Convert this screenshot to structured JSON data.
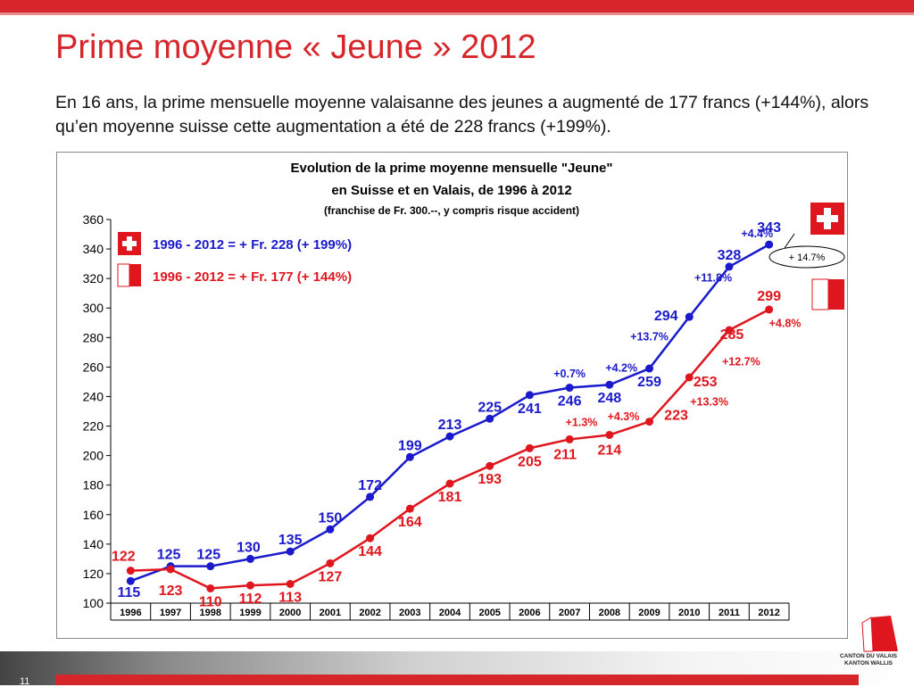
{
  "page": {
    "title": "Prime moyenne « Jeune » 2012",
    "intro": "En 16 ans, la prime mensuelle moyenne valaisanne des jeunes a augmenté de 177 francs (+144%), alors qu’en moyenne suisse cette augmentation a été de 228 francs (+199%).",
    "page_number": "11",
    "logo_text_1": "CANTON DU VALAIS",
    "logo_text_2": "KANTON WALLIS"
  },
  "chart_data": {
    "type": "line",
    "title": "Evolution de la prime moyenne mensuelle \"Jeune\"",
    "subtitle": "en Suisse et en Valais, de 1996 à 2012",
    "subtitle2": "(franchise de Fr. 300.--, y compris risque accident)",
    "x": [
      "1996",
      "1997",
      "1998",
      "1999",
      "2000",
      "2001",
      "2002",
      "2003",
      "2004",
      "2005",
      "2006",
      "2007",
      "2008",
      "2009",
      "2010",
      "2011",
      "2012"
    ],
    "ylim": [
      100,
      360
    ],
    "yticks": [
      100,
      120,
      140,
      160,
      180,
      200,
      220,
      240,
      260,
      280,
      300,
      320,
      340,
      360
    ],
    "series": [
      {
        "key": "suisse",
        "color": "#1a1acc",
        "values": [
          115,
          125,
          125,
          130,
          135,
          150,
          172,
          199,
          213,
          225,
          241,
          246,
          248,
          259,
          294,
          328,
          343
        ],
        "legend": "1996 - 2012 =  + Fr. 228 (+ 199%)",
        "pct_labels": [
          "+0.7%",
          "+4.2%",
          "+13.7%",
          "+11.8%",
          "+4.4%"
        ]
      },
      {
        "key": "valais",
        "color": "#e0161e",
        "values": [
          122,
          123,
          110,
          112,
          113,
          127,
          144,
          164,
          181,
          193,
          205,
          211,
          214,
          223,
          253,
          285,
          299
        ],
        "legend": "1996 - 2012 =  + Fr. 177 (+ 144%)",
        "pct_labels": [
          "+1.3%",
          "+4.3%",
          "+13.3%",
          "+12.7%",
          "+4.8%"
        ]
      }
    ],
    "callout": "+ 14.7%",
    "grid": false
  }
}
